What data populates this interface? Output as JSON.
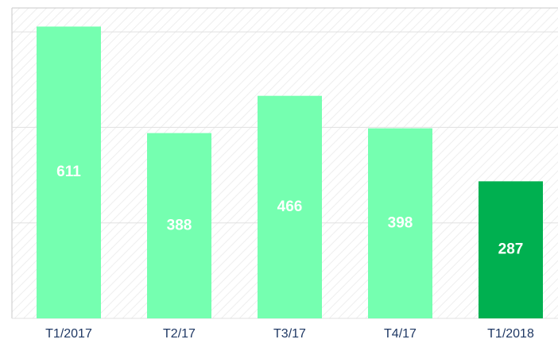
{
  "chart_data": {
    "type": "bar",
    "categories": [
      "T1/2017",
      "T2/17",
      "T3/17",
      "T4/17",
      "T1/2018"
    ],
    "values": [
      611,
      388,
      466,
      398,
      287
    ],
    "colors": [
      "#75ffb0",
      "#75ffb0",
      "#75ffb0",
      "#75ffb0",
      "#00b050"
    ],
    "ylim": [
      0,
      650
    ],
    "yticks": [
      0,
      200,
      400,
      600
    ],
    "grid": true
  }
}
